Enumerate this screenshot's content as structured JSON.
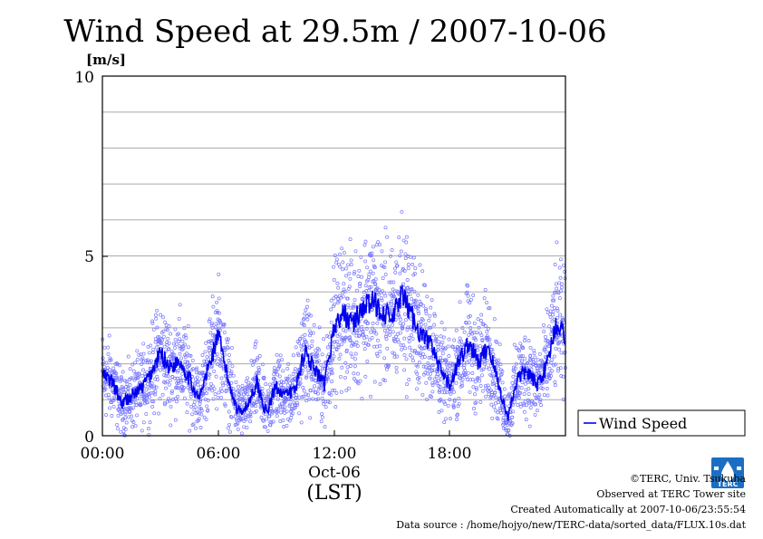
{
  "chart_data": {
    "type": "line",
    "title": "Wind Speed at 29.5m / 2007-10-06",
    "ylabel": "[m/s]",
    "xlabel": "(LST)",
    "x_date_label": "Oct-06",
    "ylim": [
      0,
      10
    ],
    "xlim": [
      "00:00",
      "24:00"
    ],
    "y_ticks": [
      "0",
      "5",
      "10"
    ],
    "x_ticks": [
      "00:00",
      "06:00",
      "12:00",
      "18:00"
    ],
    "grid": true,
    "legend_position": "bottom-right outside",
    "series": [
      {
        "name": "Wind Speed",
        "color": "#0000ee",
        "raw_color": "#7777ff",
        "hours": [
          0.0,
          0.5,
          1.0,
          1.5,
          2.0,
          2.5,
          3.0,
          3.5,
          4.0,
          4.5,
          5.0,
          5.5,
          6.0,
          6.5,
          7.0,
          7.5,
          8.0,
          8.5,
          9.0,
          9.5,
          10.0,
          10.5,
          11.0,
          11.5,
          12.0,
          12.5,
          13.0,
          13.5,
          14.0,
          14.5,
          15.0,
          15.5,
          16.0,
          16.5,
          17.0,
          17.5,
          18.0,
          18.5,
          19.0,
          19.5,
          20.0,
          20.5,
          21.0,
          21.5,
          22.0,
          22.5,
          23.0,
          23.5,
          24.0
        ],
        "values": [
          1.7,
          1.5,
          0.9,
          1.1,
          1.3,
          1.7,
          2.3,
          1.9,
          2.1,
          1.6,
          1.0,
          1.9,
          2.8,
          1.6,
          0.7,
          0.8,
          1.5,
          0.6,
          1.4,
          1.1,
          1.3,
          2.4,
          1.8,
          1.4,
          3.0,
          3.4,
          3.1,
          3.6,
          3.7,
          3.5,
          3.2,
          3.9,
          3.4,
          2.8,
          2.6,
          1.8,
          1.4,
          2.1,
          2.6,
          2.0,
          2.5,
          1.5,
          0.5,
          1.6,
          1.8,
          1.4,
          1.9,
          3.1,
          2.8
        ]
      }
    ]
  },
  "credits": {
    "copyright": "©TERC, Univ. Tsukuba",
    "observed": "Observed at TERC Tower site",
    "created": "Created Automatically at 2007-10-06/23:55:54",
    "source": "Data source : /home/hojyo/new/TERC-data/sorted_data/FLUX.10s.dat"
  },
  "logo": {
    "text": "TERC",
    "icon": "terc-logo-icon",
    "color": "#1b6fc2"
  }
}
